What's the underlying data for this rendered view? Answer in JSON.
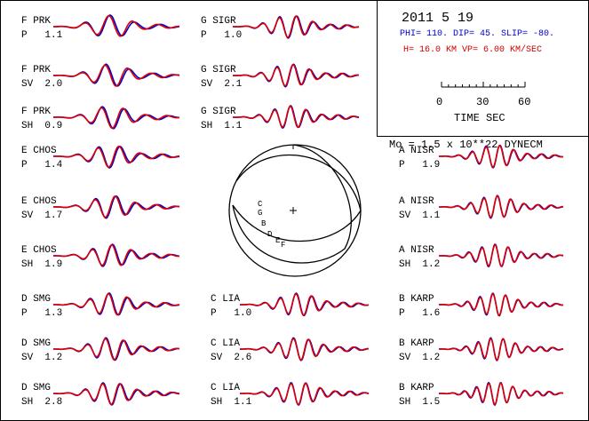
{
  "header": {
    "date": "2011  5 19",
    "params_line": "PHI= 110. DIP= 45. SLIP= -80.",
    "depth_line": "H= 16.0 KM  VP= 6.00 KM/SEC",
    "scale_ticks": [
      "0",
      "30",
      "60"
    ],
    "scale_label": "TIME  SEC",
    "moment": "Mo =  1.5 x 10**22 DYNECM"
  },
  "colors": {
    "observed": "#0000cc",
    "synthetic": "#dd0000",
    "frame": "#000000"
  },
  "stations": [
    {
      "id": "f-prk-p",
      "station": "F  PRK",
      "phase": "P",
      "value": "1.1"
    },
    {
      "id": "f-prk-sv",
      "station": "F  PRK",
      "phase": "SV",
      "value": "2.0"
    },
    {
      "id": "f-prk-sh",
      "station": "F  PRK",
      "phase": "SH",
      "value": "0.9"
    },
    {
      "id": "e-chos-p",
      "station": "E  CHOS",
      "phase": "P",
      "value": "1.4"
    },
    {
      "id": "e-chos-sv",
      "station": "E  CHOS",
      "phase": "SV",
      "value": "1.7"
    },
    {
      "id": "e-chos-sh",
      "station": "E  CHOS",
      "phase": "SH",
      "value": "1.9"
    },
    {
      "id": "d-smg-p",
      "station": "D  SMG",
      "phase": "P",
      "value": "1.3"
    },
    {
      "id": "d-smg-sv",
      "station": "D  SMG",
      "phase": "SV",
      "value": "1.2"
    },
    {
      "id": "d-smg-sh",
      "station": "D  SMG",
      "phase": "SH",
      "value": "2.8"
    },
    {
      "id": "g-sigr-p",
      "station": "G  SIGR",
      "phase": "P",
      "value": "1.0"
    },
    {
      "id": "g-sigr-sv",
      "station": "G  SIGR",
      "phase": "SV",
      "value": "2.1"
    },
    {
      "id": "g-sigr-sh",
      "station": "G  SIGR",
      "phase": "SH",
      "value": "1.1"
    },
    {
      "id": "c-lia-p",
      "station": "C  LIA",
      "phase": "P",
      "value": "1.0"
    },
    {
      "id": "c-lia-sv",
      "station": "C  LIA",
      "phase": "SV",
      "value": "2.6"
    },
    {
      "id": "c-lia-sh",
      "station": "C  LIA",
      "phase": "SH",
      "value": "1.1"
    },
    {
      "id": "a-nisr-p",
      "station": "A  NISR",
      "phase": "P",
      "value": "1.9"
    },
    {
      "id": "a-nisr-sv",
      "station": "A  NISR",
      "phase": "SV",
      "value": "1.1"
    },
    {
      "id": "a-nisr-sh",
      "station": "A  NISR",
      "phase": "SH",
      "value": "1.2"
    },
    {
      "id": "b-karp-p",
      "station": "B  KARP",
      "phase": "P",
      "value": "1.6"
    },
    {
      "id": "b-karp-sv",
      "station": "B  KARP",
      "phase": "SV",
      "value": "1.2"
    },
    {
      "id": "b-karp-sh",
      "station": "B  KARP",
      "phase": "SH",
      "value": "1.5"
    }
  ],
  "beachball_labels": [
    "C",
    "G",
    "B",
    "D",
    "E",
    "F"
  ]
}
